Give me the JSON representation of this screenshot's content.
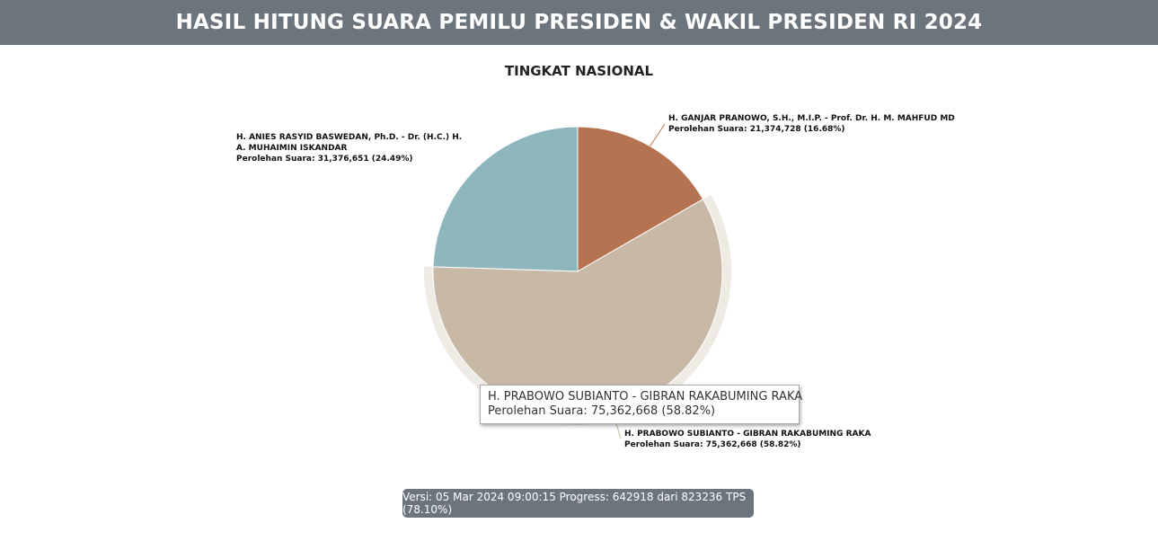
{
  "header": {
    "title": "HASIL HITUNG SUARA PEMILU PRESIDEN & WAKIL PRESIDEN RI 2024"
  },
  "chart_data": {
    "type": "pie",
    "title": "TINGKAT NASIONAL",
    "value_label": "Perolehan Suara",
    "series": [
      {
        "name": "H. GANJAR PRANOWO, S.H., M.I.P. - Prof. Dr. H. M. MAHFUD MD",
        "value": 21374728,
        "value_text": "21,374,728",
        "percent": 16.68,
        "color": "#b57352",
        "label_lines": [
          "H. GANJAR PRANOWO, S.H., M.I.P. - Prof. Dr. H. M. MAHFUD MD"
        ],
        "value_line": "Perolehan Suara: 21,374,728 (16.68%)"
      },
      {
        "name": "H. PRABOWO SUBIANTO - GIBRAN RAKABUMING RAKA",
        "value": 75362668,
        "value_text": "75,362,668",
        "percent": 58.82,
        "color": "#c8b8a6",
        "hovered": true,
        "label_lines": [
          "H. PRABOWO SUBIANTO - GIBRAN RAKABUMING RAKA"
        ],
        "value_line": "Perolehan Suara: 75,362,668 (58.82%)"
      },
      {
        "name": "H. ANIES RASYID BASWEDAN, Ph.D. - Dr. (H.C.) H. A. MUHAIMIN ISKANDAR",
        "value": 31376651,
        "value_text": "31,376,651",
        "percent": 24.49,
        "color": "#8eb7bd",
        "label_lines": [
          "H. ANIES RASYID BASWEDAN, Ph.D. - Dr. (H.C.) H.",
          "A. MUHAIMIN ISKANDAR"
        ],
        "value_line": "Perolehan Suara: 31,376,651 (24.49%)"
      }
    ]
  },
  "tooltip": {
    "line1": "H. PRABOWO SUBIANTO - GIBRAN RAKABUMING RAKA",
    "line2": "Perolehan Suara: 75,362,668 (58.82%)"
  },
  "footer": {
    "version_text": "Versi: 05 Mar 2024 09:00:15 Progress: 642918 dari 823236 TPS (78.10%)"
  }
}
